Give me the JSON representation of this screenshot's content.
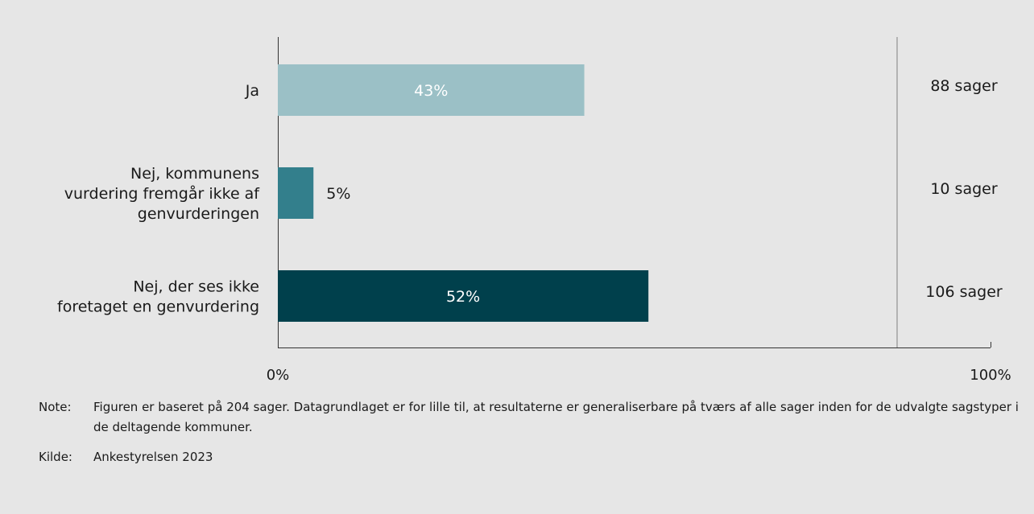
{
  "chart_data": {
    "type": "bar",
    "orientation": "horizontal",
    "categories": [
      [
        "Ja"
      ],
      [
        "Nej, kommunens",
        "vurdering fremgår ikke af",
        "genvurderingen"
      ],
      [
        "Nej, der ses ikke",
        "foretaget en genvurdering"
      ]
    ],
    "values": [
      43,
      5,
      52
    ],
    "value_labels": [
      "43%",
      "5%",
      "52%"
    ],
    "counts": [
      "88 sager",
      "10 sager",
      "106 sager"
    ],
    "colors": [
      "#9bc0c6",
      "#337f8c",
      "#00404c"
    ],
    "xlim": [
      0,
      100
    ],
    "xtick_labels": [
      "0%",
      "100%"
    ],
    "grid": false
  },
  "note": {
    "label": "Note:",
    "text": "Figuren er baseret på 204 sager. Datagrundlaget er for lille til, at resultaterne er generaliserbare på tværs af alle sager inden for de udvalgte sagstyper i de deltagende kommuner."
  },
  "source": {
    "label": "Kilde:",
    "text": "Ankestyrelsen 2023"
  }
}
